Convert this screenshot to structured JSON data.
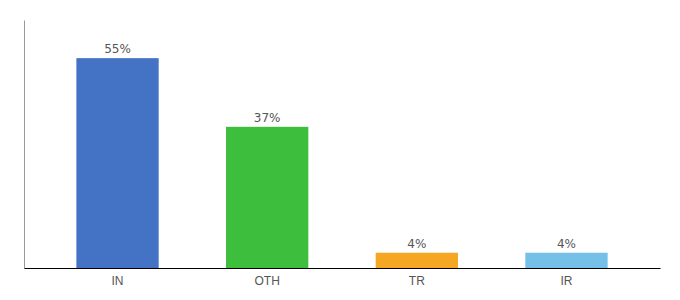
{
  "chart_data": {
    "type": "bar",
    "categories": [
      "IN",
      "OTH",
      "TR",
      "IR"
    ],
    "values": [
      55,
      37,
      4,
      4
    ],
    "value_labels": [
      "55%",
      "37%",
      "4%",
      "4%"
    ],
    "colors": [
      "#4472C4",
      "#3DBE3D",
      "#F5A623",
      "#74C0E8"
    ],
    "ylim": [
      0,
      65
    ],
    "grid": false,
    "data_labels": true,
    "tick_labels": "x"
  }
}
